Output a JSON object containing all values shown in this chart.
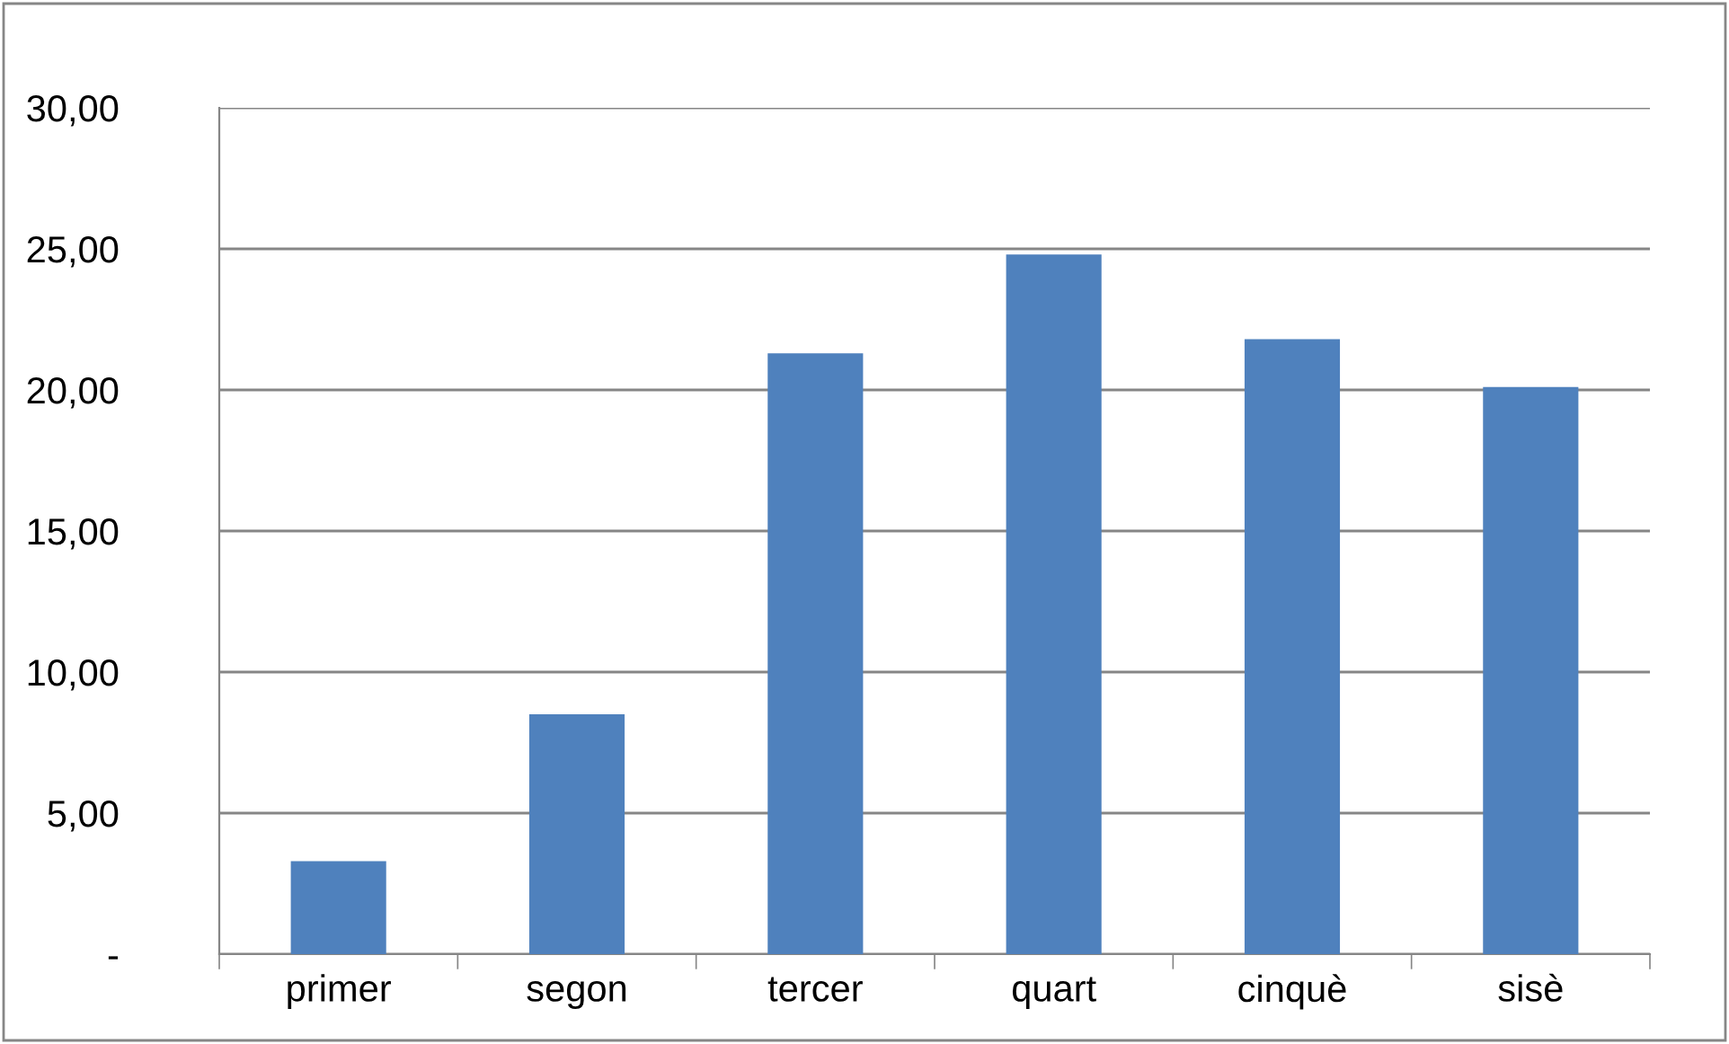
{
  "chart_data": {
    "type": "bar",
    "categories": [
      "primer",
      "segon",
      "tercer",
      "quart",
      "cinquè",
      "sisè"
    ],
    "values": [
      3.3,
      8.5,
      21.3,
      24.8,
      21.8,
      20.1
    ],
    "color": "#4f81bd",
    "ylim": [
      0,
      30
    ],
    "yticks": [
      {
        "value": 0,
        "label": "-"
      },
      {
        "value": 5,
        "label": "5,00"
      },
      {
        "value": 10,
        "label": "10,00"
      },
      {
        "value": 15,
        "label": "15,00"
      },
      {
        "value": 20,
        "label": "20,00"
      },
      {
        "value": 25,
        "label": "25,00"
      },
      {
        "value": 30,
        "label": "30,00"
      }
    ],
    "grid": "y"
  }
}
